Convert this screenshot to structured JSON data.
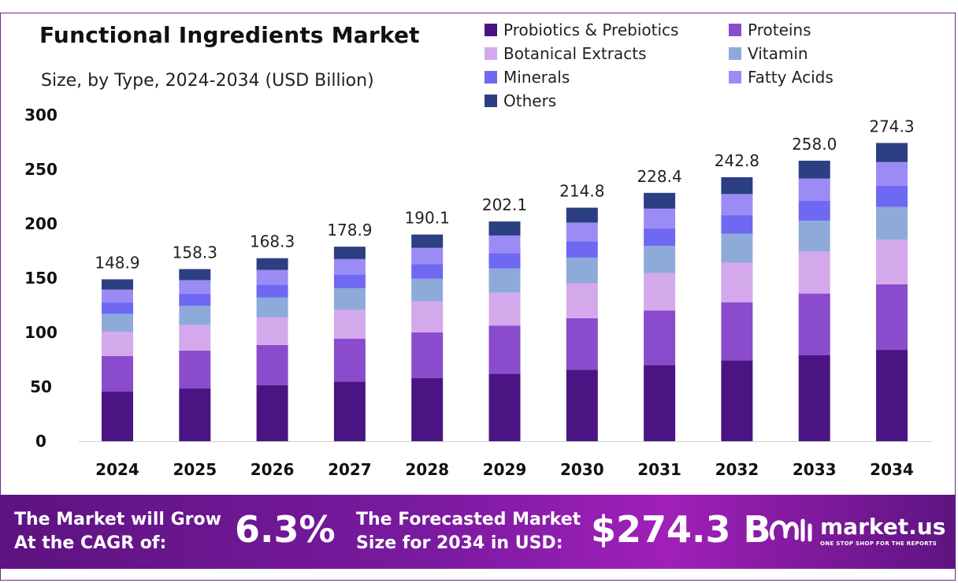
{
  "chart_data": {
    "type": "bar",
    "stacked": true,
    "title": "Functional Ingredients Market",
    "subtitle": "Size, by Type, 2024-2034 (USD Billion)",
    "xlabel": "",
    "ylabel": "",
    "ylim": [
      0,
      300
    ],
    "yticks": [
      0,
      50,
      100,
      150,
      200,
      250,
      300
    ],
    "categories": [
      "2024",
      "2025",
      "2026",
      "2027",
      "2028",
      "2029",
      "2030",
      "2031",
      "2032",
      "2033",
      "2034"
    ],
    "totals": [
      "148.9",
      "158.3",
      "168.3",
      "178.9",
      "190.1",
      "202.1",
      "214.8",
      "228.4",
      "242.8",
      "258.0",
      "274.3"
    ],
    "legend_position": "top-right",
    "series": [
      {
        "name": "Probiotics & Prebiotics",
        "color": "#4a1582",
        "values": [
          45.6,
          48.5,
          51.5,
          54.8,
          58.2,
          61.9,
          65.8,
          69.9,
          74.4,
          79.0,
          84.0
        ]
      },
      {
        "name": "Proteins",
        "color": "#8a4bcc",
        "values": [
          32.8,
          34.8,
          37.0,
          39.4,
          41.8,
          44.5,
          47.3,
          50.3,
          53.4,
          56.8,
          60.3
        ]
      },
      {
        "name": "Botanical Extracts",
        "color": "#d3a9ec",
        "values": [
          22.3,
          23.7,
          25.2,
          26.8,
          28.5,
          30.3,
          32.2,
          34.3,
          36.4,
          38.7,
          41.1
        ]
      },
      {
        "name": "Vitamin",
        "color": "#8eaad9",
        "values": [
          16.4,
          17.4,
          18.5,
          19.7,
          20.9,
          22.2,
          23.6,
          25.1,
          26.7,
          28.4,
          30.2
        ]
      },
      {
        "name": "Minerals",
        "color": "#6e68f2",
        "values": [
          10.4,
          11.1,
          11.8,
          12.5,
          13.3,
          14.1,
          15.0,
          16.0,
          17.0,
          18.1,
          19.2
        ]
      },
      {
        "name": "Fatty Acids",
        "color": "#9b8cf5",
        "values": [
          11.9,
          12.7,
          13.5,
          14.3,
          15.2,
          16.2,
          17.2,
          18.3,
          19.4,
          20.6,
          21.9
        ]
      },
      {
        "name": "Others",
        "color": "#2b3f82",
        "values": [
          9.5,
          10.1,
          10.8,
          11.4,
          12.2,
          12.9,
          13.7,
          14.5,
          15.5,
          16.4,
          17.6
        ]
      }
    ]
  },
  "banner": {
    "cagr_text_line1": "The Market will Grow",
    "cagr_text_line2": "At the CAGR of:",
    "cagr_value": "6.3%",
    "forecast_text_line1": "The Forecasted Market",
    "forecast_text_line2": "Size for 2034 in USD:",
    "forecast_value": "$274.3 B",
    "brand_name": "market.us",
    "brand_tagline": "ONE STOP SHOP FOR THE REPORTS"
  }
}
